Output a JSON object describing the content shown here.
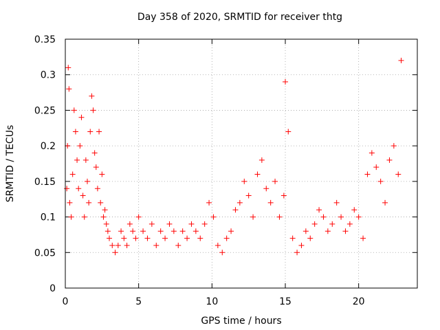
{
  "chart_data": {
    "type": "scatter",
    "title": "Day 358 of 2020, SRMTID for receiver thtg",
    "xlabel": "GPS time / hours",
    "ylabel": "SRMTID / TECUs",
    "xlim": [
      0,
      24
    ],
    "ylim": [
      0,
      0.35
    ],
    "xticks": [
      0,
      5,
      10,
      15,
      20
    ],
    "xtick_labels": [
      "0",
      "5",
      "10",
      "15",
      "20"
    ],
    "yticks": [
      0,
      0.05,
      0.1,
      0.15,
      0.2,
      0.25,
      0.3,
      0.35
    ],
    "ytick_labels": [
      "0",
      "0.05",
      "0.1",
      "0.15",
      "0.2",
      "0.25",
      "0.3",
      "0.35"
    ],
    "grid": true,
    "marker": "+",
    "series": [
      {
        "name": "SRMTID",
        "color": "#ff0000",
        "x": [
          0.1,
          0.2,
          0.15,
          0.25,
          0.3,
          0.4,
          0.5,
          0.6,
          0.7,
          0.8,
          0.9,
          1.0,
          1.1,
          1.2,
          1.3,
          1.4,
          1.5,
          1.6,
          1.7,
          1.8,
          1.9,
          2.0,
          2.1,
          2.2,
          2.3,
          2.4,
          2.5,
          2.6,
          2.7,
          2.8,
          2.9,
          3.0,
          3.2,
          3.4,
          3.6,
          3.8,
          4.0,
          4.2,
          4.4,
          4.6,
          4.8,
          5.0,
          5.3,
          5.6,
          5.9,
          6.2,
          6.5,
          6.8,
          7.1,
          7.4,
          7.7,
          8.0,
          8.3,
          8.6,
          8.9,
          9.2,
          9.5,
          9.8,
          10.1,
          10.4,
          10.7,
          11.0,
          11.3,
          11.6,
          11.9,
          12.2,
          12.5,
          12.8,
          13.1,
          13.4,
          13.7,
          14.0,
          14.3,
          14.6,
          14.9,
          15.0,
          15.2,
          15.5,
          15.8,
          16.1,
          16.4,
          16.7,
          17.0,
          17.3,
          17.6,
          17.9,
          18.2,
          18.5,
          18.8,
          19.1,
          19.4,
          19.7,
          20.0,
          20.3,
          20.6,
          20.9,
          21.2,
          21.5,
          21.8,
          22.1,
          22.4,
          22.7,
          22.9
        ],
        "y": [
          0.14,
          0.31,
          0.2,
          0.28,
          0.12,
          0.1,
          0.16,
          0.25,
          0.22,
          0.18,
          0.14,
          0.2,
          0.24,
          0.13,
          0.1,
          0.18,
          0.15,
          0.12,
          0.22,
          0.27,
          0.25,
          0.19,
          0.17,
          0.14,
          0.22,
          0.12,
          0.16,
          0.1,
          0.11,
          0.09,
          0.08,
          0.07,
          0.06,
          0.05,
          0.06,
          0.08,
          0.07,
          0.06,
          0.09,
          0.08,
          0.07,
          0.1,
          0.08,
          0.07,
          0.09,
          0.06,
          0.08,
          0.07,
          0.09,
          0.08,
          0.06,
          0.08,
          0.07,
          0.09,
          0.08,
          0.07,
          0.09,
          0.12,
          0.1,
          0.06,
          0.05,
          0.07,
          0.08,
          0.11,
          0.12,
          0.15,
          0.13,
          0.1,
          0.16,
          0.18,
          0.14,
          0.12,
          0.15,
          0.1,
          0.13,
          0.29,
          0.22,
          0.07,
          0.05,
          0.06,
          0.08,
          0.07,
          0.09,
          0.11,
          0.1,
          0.08,
          0.09,
          0.12,
          0.1,
          0.08,
          0.09,
          0.11,
          0.1,
          0.07,
          0.16,
          0.19,
          0.17,
          0.15,
          0.12,
          0.18,
          0.2,
          0.16,
          0.32
        ]
      }
    ]
  }
}
